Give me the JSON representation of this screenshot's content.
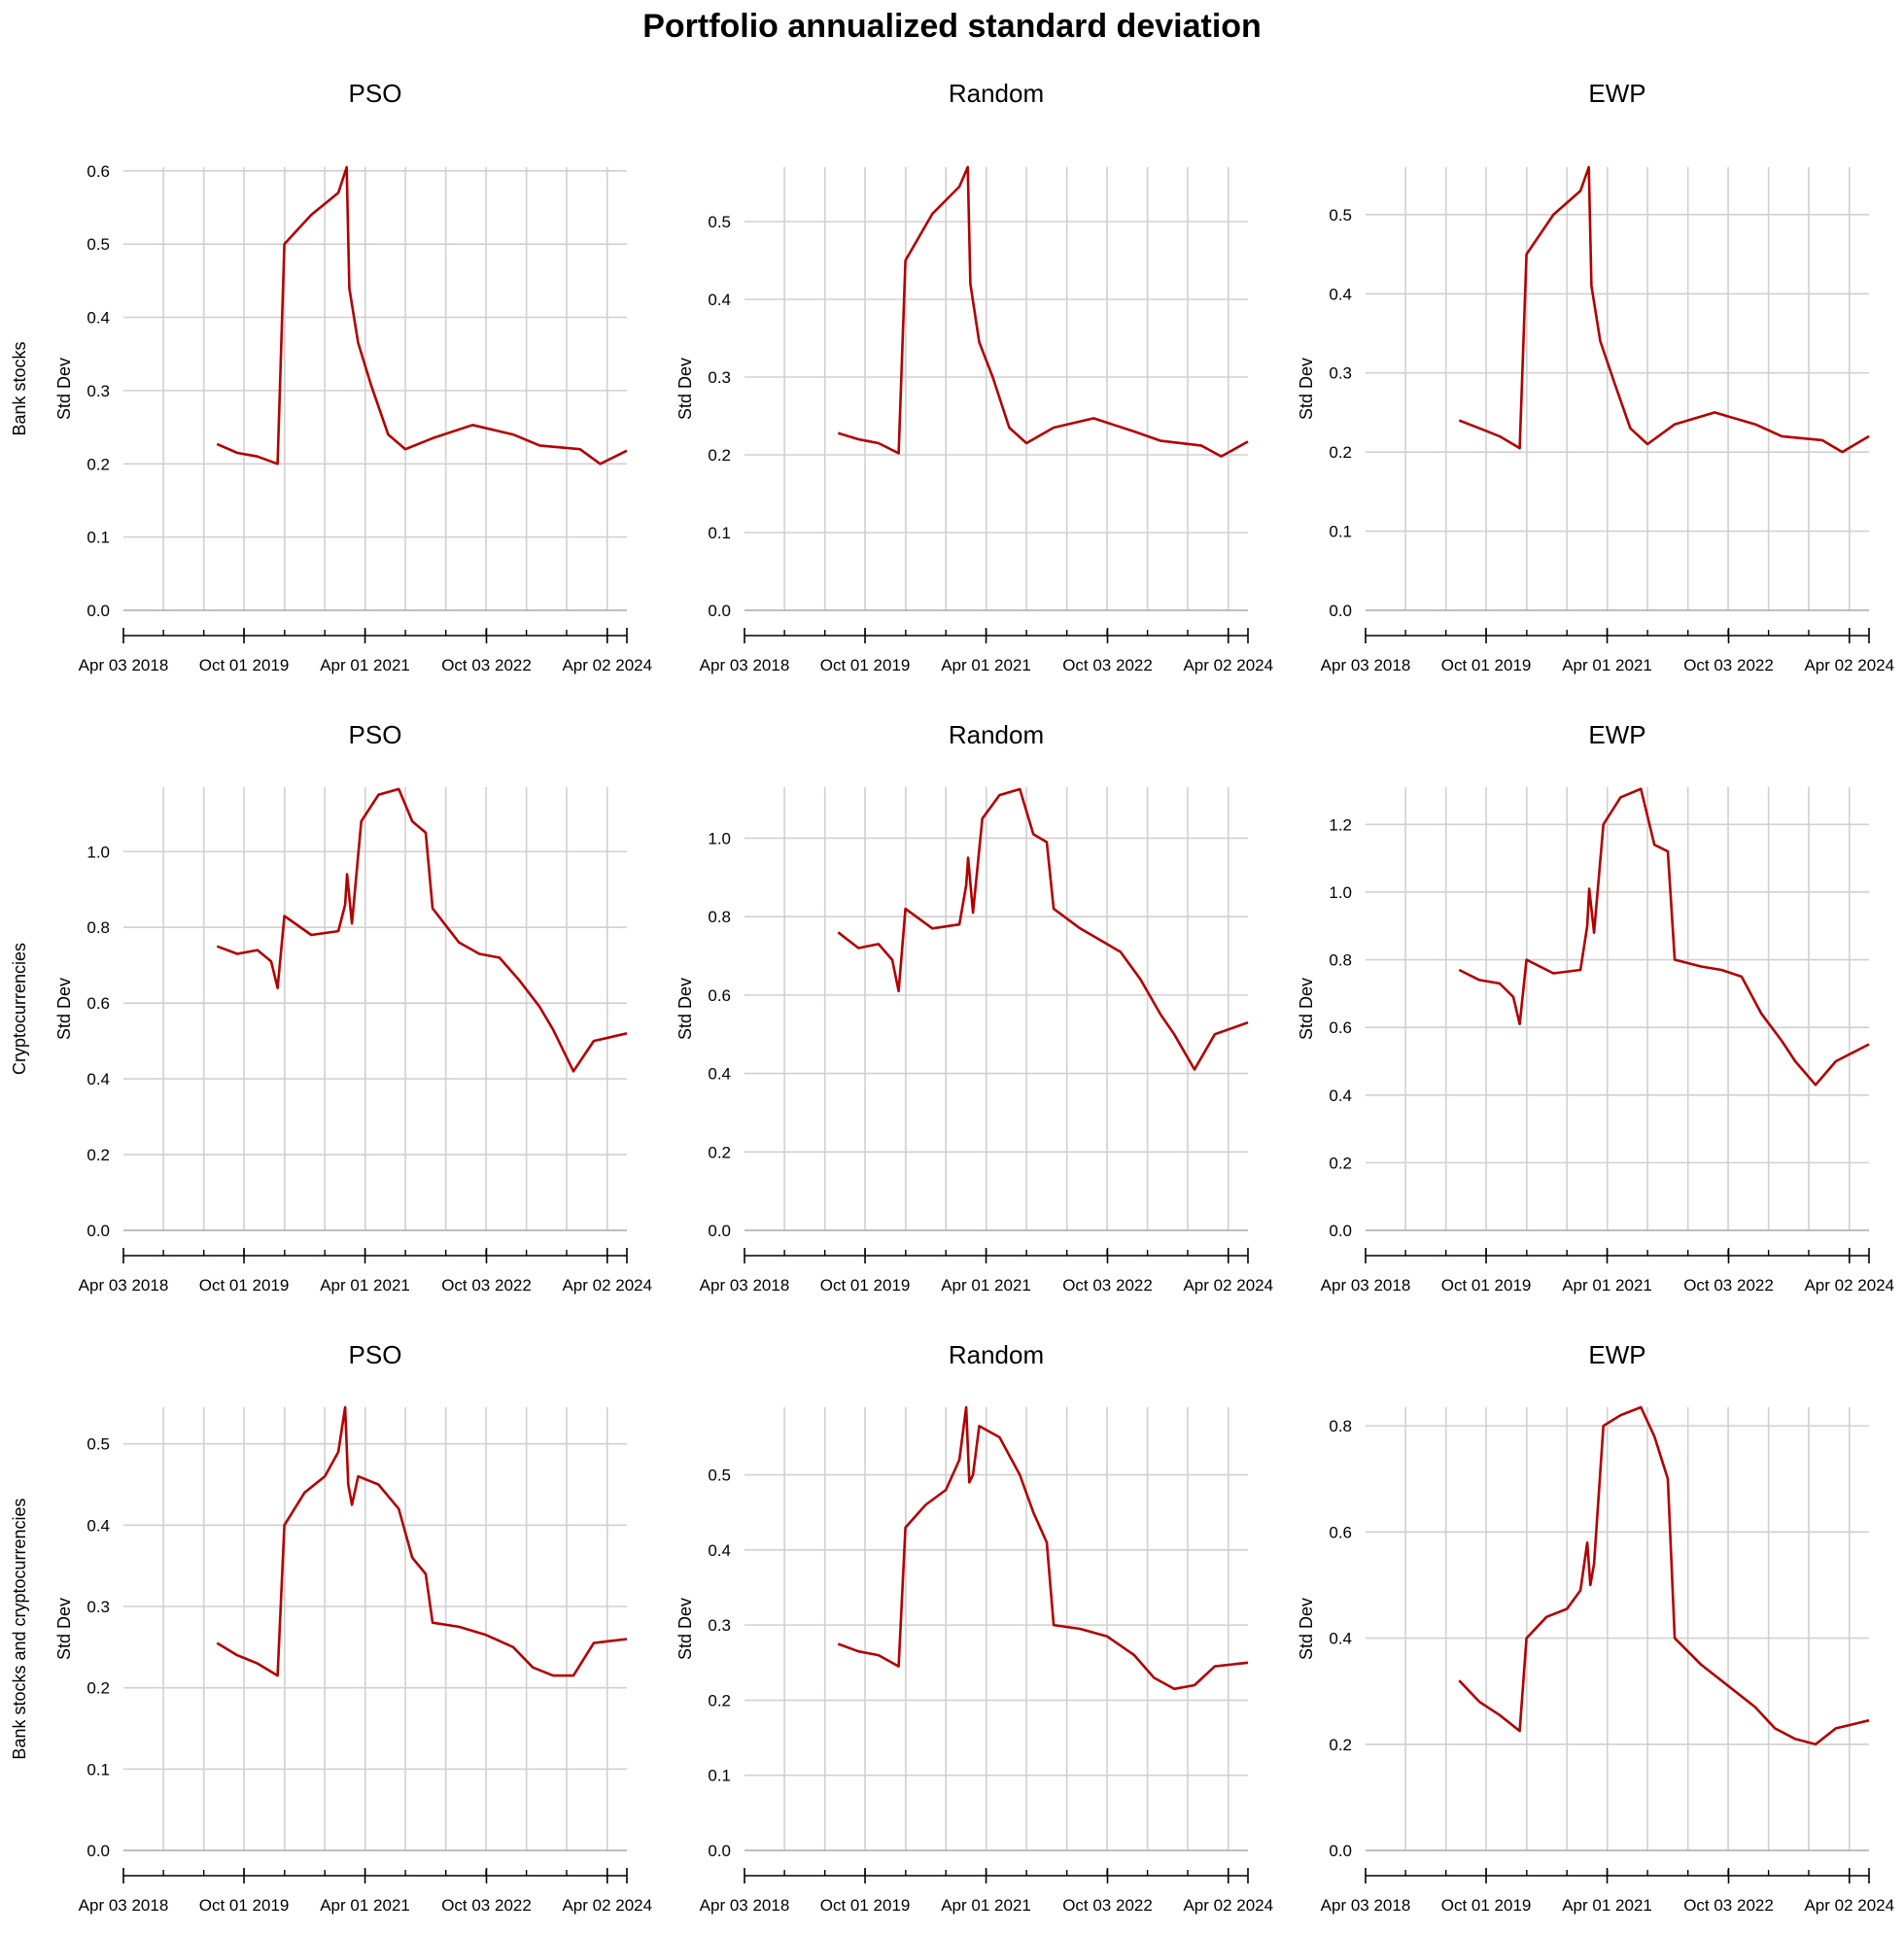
{
  "title": "Portfolio annualized standard deviation",
  "row_labels": [
    "Bank stocks",
    "Cryptocurrencies",
    "Bank stocks and cryptocurrencies"
  ],
  "ylabel": "Std Dev",
  "x_ticks": [
    "Apr 03 2018",
    "Oct 01 2019",
    "Apr 01 2021",
    "Oct 03 2022",
    "Apr 02 2024"
  ],
  "line_color": "#b30000",
  "chart_data": [
    {
      "type": "line",
      "title": "PSO",
      "row_label": "Bank stocks",
      "ylabel": "Std Dev",
      "x_range": [
        "2018-04-03",
        "2024-06-30"
      ],
      "ylim": [
        0,
        0.605
      ],
      "yticks": [
        0.0,
        0.1,
        0.2,
        0.3,
        0.4,
        0.5,
        0.6
      ],
      "grid": true,
      "series": [
        {
          "x": [
            "2019-06-01",
            "2019-09-01",
            "2019-12-01",
            "2020-03-01",
            "2020-04-01",
            "2020-08-01",
            "2020-12-01",
            "2021-01-08",
            "2021-01-20",
            "2021-03-01",
            "2021-05-01",
            "2021-07-15",
            "2021-10-01",
            "2022-02-01",
            "2022-08-01",
            "2023-02-01",
            "2023-06-01",
            "2023-12-01",
            "2024-03-01",
            "2024-06-30"
          ],
          "y": [
            0.227,
            0.215,
            0.21,
            0.2,
            0.5,
            0.54,
            0.57,
            0.605,
            0.44,
            0.365,
            0.305,
            0.24,
            0.22,
            0.235,
            0.253,
            0.24,
            0.225,
            0.22,
            0.2,
            0.218
          ]
        }
      ]
    },
    {
      "type": "line",
      "title": "Random",
      "row_label": "Bank stocks",
      "ylabel": "Std Dev",
      "x_range": [
        "2018-04-03",
        "2024-06-30"
      ],
      "ylim": [
        0,
        0.57
      ],
      "yticks": [
        0.0,
        0.1,
        0.2,
        0.3,
        0.4,
        0.5
      ],
      "grid": true,
      "series": [
        {
          "x": [
            "2019-06-01",
            "2019-09-01",
            "2019-12-01",
            "2020-03-01",
            "2020-04-01",
            "2020-08-01",
            "2020-12-01",
            "2021-01-08",
            "2021-01-20",
            "2021-03-01",
            "2021-05-01",
            "2021-07-15",
            "2021-10-01",
            "2022-02-01",
            "2022-08-01",
            "2023-02-01",
            "2023-06-01",
            "2023-12-01",
            "2024-03-01",
            "2024-06-30"
          ],
          "y": [
            0.228,
            0.22,
            0.215,
            0.202,
            0.45,
            0.51,
            0.545,
            0.57,
            0.42,
            0.345,
            0.3,
            0.235,
            0.215,
            0.235,
            0.247,
            0.23,
            0.218,
            0.212,
            0.198,
            0.217
          ]
        }
      ]
    },
    {
      "type": "line",
      "title": "EWP",
      "row_label": "Bank stocks",
      "ylabel": "Std Dev",
      "x_range": [
        "2018-04-03",
        "2024-06-30"
      ],
      "ylim": [
        0,
        0.56
      ],
      "yticks": [
        0.0,
        0.1,
        0.2,
        0.3,
        0.4,
        0.5
      ],
      "grid": true,
      "series": [
        {
          "x": [
            "2019-06-01",
            "2019-09-01",
            "2019-12-01",
            "2020-03-01",
            "2020-04-01",
            "2020-08-01",
            "2020-12-01",
            "2021-01-08",
            "2021-01-20",
            "2021-03-01",
            "2021-05-01",
            "2021-07-15",
            "2021-10-01",
            "2022-02-01",
            "2022-08-01",
            "2023-02-01",
            "2023-06-01",
            "2023-12-01",
            "2024-03-01",
            "2024-06-30"
          ],
          "y": [
            0.24,
            0.23,
            0.22,
            0.205,
            0.45,
            0.5,
            0.53,
            0.56,
            0.41,
            0.34,
            0.29,
            0.23,
            0.21,
            0.235,
            0.25,
            0.235,
            0.22,
            0.215,
            0.2,
            0.22
          ]
        }
      ]
    },
    {
      "type": "line",
      "title": "PSO",
      "row_label": "Cryptocurrencies",
      "ylabel": "Std Dev",
      "x_range": [
        "2018-04-03",
        "2024-06-30"
      ],
      "ylim": [
        0,
        1.17
      ],
      "yticks": [
        0.0,
        0.2,
        0.4,
        0.6,
        0.8,
        1.0
      ],
      "grid": true,
      "series": [
        {
          "x": [
            "2019-06-01",
            "2019-09-01",
            "2019-12-01",
            "2020-02-01",
            "2020-03-01",
            "2020-04-01",
            "2020-08-01",
            "2020-12-01",
            "2021-01-01",
            "2021-01-10",
            "2021-02-01",
            "2021-03-15",
            "2021-06-01",
            "2021-09-01",
            "2021-11-01",
            "2022-01-01",
            "2022-02-01",
            "2022-06-01",
            "2022-09-01",
            "2022-12-01",
            "2023-03-01",
            "2023-06-01",
            "2023-08-01",
            "2023-11-01",
            "2024-02-01",
            "2024-06-30"
          ],
          "y": [
            0.75,
            0.73,
            0.74,
            0.71,
            0.64,
            0.83,
            0.78,
            0.79,
            0.86,
            0.94,
            0.81,
            1.08,
            1.15,
            1.165,
            1.08,
            1.05,
            0.85,
            0.76,
            0.73,
            0.72,
            0.66,
            0.59,
            0.53,
            0.42,
            0.5,
            0.52
          ]
        }
      ]
    },
    {
      "type": "line",
      "title": "Random",
      "row_label": "Cryptocurrencies",
      "ylabel": "Std Dev",
      "x_range": [
        "2018-04-03",
        "2024-06-30"
      ],
      "ylim": [
        0,
        1.13
      ],
      "yticks": [
        0.0,
        0.2,
        0.4,
        0.6,
        0.8,
        1.0
      ],
      "grid": true,
      "series": [
        {
          "x": [
            "2019-06-01",
            "2019-09-01",
            "2019-12-01",
            "2020-02-01",
            "2020-03-01",
            "2020-04-01",
            "2020-08-01",
            "2020-12-01",
            "2021-01-01",
            "2021-01-10",
            "2021-02-01",
            "2021-03-15",
            "2021-06-01",
            "2021-09-01",
            "2021-11-01",
            "2022-01-01",
            "2022-02-01",
            "2022-06-01",
            "2022-09-01",
            "2022-12-01",
            "2023-03-01",
            "2023-06-01",
            "2023-08-01",
            "2023-11-01",
            "2024-02-01",
            "2024-06-30"
          ],
          "y": [
            0.76,
            0.72,
            0.73,
            0.69,
            0.61,
            0.82,
            0.77,
            0.78,
            0.88,
            0.95,
            0.81,
            1.05,
            1.11,
            1.125,
            1.01,
            0.99,
            0.82,
            0.77,
            0.74,
            0.71,
            0.64,
            0.55,
            0.5,
            0.41,
            0.5,
            0.53
          ]
        }
      ]
    },
    {
      "type": "line",
      "title": "EWP",
      "row_label": "Cryptocurrencies",
      "ylabel": "Std Dev",
      "x_range": [
        "2018-04-03",
        "2024-06-30"
      ],
      "ylim": [
        0,
        1.31
      ],
      "yticks": [
        0.0,
        0.2,
        0.4,
        0.6,
        0.8,
        1.0,
        1.2
      ],
      "grid": true,
      "series": [
        {
          "x": [
            "2019-06-01",
            "2019-09-01",
            "2019-12-01",
            "2020-02-01",
            "2020-03-01",
            "2020-04-01",
            "2020-08-01",
            "2020-12-01",
            "2021-01-01",
            "2021-01-10",
            "2021-02-01",
            "2021-03-15",
            "2021-06-01",
            "2021-09-01",
            "2021-11-01",
            "2022-01-01",
            "2022-02-01",
            "2022-06-01",
            "2022-09-01",
            "2022-12-01",
            "2023-03-01",
            "2023-06-01",
            "2023-08-01",
            "2023-11-01",
            "2024-02-01",
            "2024-06-30"
          ],
          "y": [
            0.77,
            0.74,
            0.73,
            0.69,
            0.61,
            0.8,
            0.76,
            0.77,
            0.9,
            1.01,
            0.88,
            1.2,
            1.28,
            1.305,
            1.14,
            1.12,
            0.8,
            0.78,
            0.77,
            0.75,
            0.64,
            0.56,
            0.5,
            0.43,
            0.5,
            0.55
          ]
        }
      ]
    },
    {
      "type": "line",
      "title": "PSO",
      "row_label": "Bank stocks and cryptocurrencies",
      "ylabel": "Std Dev",
      "x_range": [
        "2018-04-03",
        "2024-06-30"
      ],
      "ylim": [
        0,
        0.545
      ],
      "yticks": [
        0.0,
        0.1,
        0.2,
        0.3,
        0.4,
        0.5
      ],
      "grid": true,
      "series": [
        {
          "x": [
            "2019-06-01",
            "2019-09-01",
            "2019-12-01",
            "2020-03-01",
            "2020-04-01",
            "2020-07-01",
            "2020-10-01",
            "2020-12-01",
            "2021-01-01",
            "2021-01-15",
            "2021-02-01",
            "2021-03-01",
            "2021-06-01",
            "2021-09-01",
            "2021-11-01",
            "2022-01-01",
            "2022-02-01",
            "2022-06-01",
            "2022-10-01",
            "2023-02-01",
            "2023-05-01",
            "2023-08-01",
            "2023-11-01",
            "2024-02-01",
            "2024-06-30"
          ],
          "y": [
            0.255,
            0.24,
            0.23,
            0.215,
            0.4,
            0.44,
            0.46,
            0.49,
            0.545,
            0.45,
            0.425,
            0.46,
            0.45,
            0.42,
            0.36,
            0.34,
            0.28,
            0.275,
            0.265,
            0.25,
            0.225,
            0.215,
            0.215,
            0.255,
            0.26
          ]
        }
      ]
    },
    {
      "type": "line",
      "title": "Random",
      "row_label": "Bank stocks and cryptocurrencies",
      "ylabel": "Std Dev",
      "x_range": [
        "2018-04-03",
        "2024-06-30"
      ],
      "ylim": [
        0,
        0.59
      ],
      "yticks": [
        0.0,
        0.1,
        0.2,
        0.3,
        0.4,
        0.5
      ],
      "grid": true,
      "series": [
        {
          "x": [
            "2019-06-01",
            "2019-09-01",
            "2019-12-01",
            "2020-03-01",
            "2020-04-01",
            "2020-07-01",
            "2020-10-01",
            "2020-12-01",
            "2021-01-01",
            "2021-01-15",
            "2021-02-01",
            "2021-03-01",
            "2021-06-01",
            "2021-09-01",
            "2021-11-01",
            "2022-01-01",
            "2022-02-01",
            "2022-06-01",
            "2022-10-01",
            "2023-02-01",
            "2023-05-01",
            "2023-08-01",
            "2023-11-01",
            "2024-02-01",
            "2024-06-30"
          ],
          "y": [
            0.275,
            0.265,
            0.26,
            0.245,
            0.43,
            0.46,
            0.48,
            0.52,
            0.59,
            0.49,
            0.5,
            0.565,
            0.55,
            0.5,
            0.45,
            0.41,
            0.3,
            0.295,
            0.285,
            0.26,
            0.23,
            0.215,
            0.22,
            0.245,
            0.25
          ]
        }
      ]
    },
    {
      "type": "line",
      "title": "EWP",
      "row_label": "Bank stocks and cryptocurrencies",
      "ylabel": "Std Dev",
      "x_range": [
        "2018-04-03",
        "2024-06-30"
      ],
      "ylim": [
        0,
        0.835
      ],
      "yticks": [
        0.0,
        0.2,
        0.4,
        0.6,
        0.8
      ],
      "grid": true,
      "series": [
        {
          "x": [
            "2019-06-01",
            "2019-09-01",
            "2019-12-01",
            "2020-03-01",
            "2020-04-01",
            "2020-07-01",
            "2020-10-01",
            "2020-12-01",
            "2021-01-01",
            "2021-01-15",
            "2021-02-01",
            "2021-03-15",
            "2021-06-01",
            "2021-09-01",
            "2021-11-01",
            "2022-01-01",
            "2022-02-01",
            "2022-06-01",
            "2022-10-01",
            "2023-02-01",
            "2023-05-01",
            "2023-08-01",
            "2023-11-01",
            "2024-02-01",
            "2024-06-30"
          ],
          "y": [
            0.32,
            0.28,
            0.255,
            0.225,
            0.4,
            0.44,
            0.455,
            0.49,
            0.58,
            0.5,
            0.54,
            0.8,
            0.82,
            0.835,
            0.78,
            0.7,
            0.4,
            0.35,
            0.31,
            0.27,
            0.23,
            0.21,
            0.2,
            0.23,
            0.245
          ]
        }
      ]
    }
  ]
}
